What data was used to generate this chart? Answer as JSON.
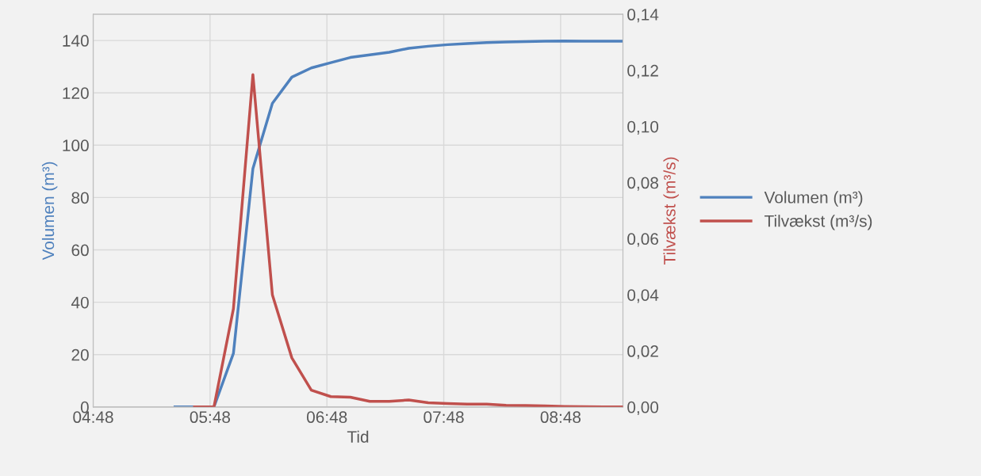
{
  "chart_data": {
    "type": "line",
    "xlabel": "Tid",
    "ylabel": "Volumen (m³)",
    "y2label": "Tilvækst (m³/s)",
    "xlim": [
      4.8,
      9.3333
    ],
    "xticks": [
      {
        "value": 4.8,
        "label": "04:48"
      },
      {
        "value": 5.8,
        "label": "05:48"
      },
      {
        "value": 6.8,
        "label": "06:48"
      },
      {
        "value": 7.8,
        "label": "07:48"
      },
      {
        "value": 8.8,
        "label": "08:48"
      }
    ],
    "ylim": [
      0,
      150
    ],
    "yticks": [
      0,
      20,
      40,
      60,
      80,
      100,
      120,
      140
    ],
    "y2lim": [
      0,
      0.14
    ],
    "y2ticks": [
      {
        "value": 0,
        "label": "0,00"
      },
      {
        "value": 0.02,
        "label": "0,02"
      },
      {
        "value": 0.04,
        "label": "0,04"
      },
      {
        "value": 0.06,
        "label": "0,06"
      },
      {
        "value": 0.08,
        "label": "0,08"
      },
      {
        "value": 0.1,
        "label": "0,10"
      },
      {
        "value": 0.12,
        "label": "0,12"
      },
      {
        "value": 0.14,
        "label": "0,14"
      }
    ],
    "grid": true,
    "legend": "right",
    "marker": "none",
    "line_style": "solid",
    "series": [
      {
        "name": "Volumen (m³)",
        "color": "#4f81bd",
        "x": [
          5.5,
          5.6667,
          5.8333,
          6.0,
          6.1667,
          6.3333,
          6.5,
          6.6667,
          6.8333,
          7.0,
          7.1667,
          7.3333,
          7.5,
          7.6667,
          7.8333,
          8.0,
          8.1667,
          8.3333,
          8.5,
          8.6667,
          8.8333,
          9.0,
          9.1667,
          9.3333
        ],
        "values": [
          0,
          0,
          0,
          20.5,
          91,
          116,
          126,
          129.5,
          131.5,
          133.5,
          134.5,
          135.5,
          137,
          137.8,
          138.4,
          138.8,
          139.2,
          139.4,
          139.6,
          139.7,
          139.8,
          139.7,
          139.7,
          139.7
        ]
      },
      {
        "name": "Tilvækst (m³/s)",
        "color": "#c0504d",
        "axis": "y2",
        "x": [
          5.6667,
          5.8333,
          6.0,
          6.1667,
          6.3333,
          6.5,
          6.6667,
          6.8333,
          7.0,
          7.1667,
          7.3333,
          7.5,
          7.6667,
          7.8333,
          8.0,
          8.1667,
          8.3333,
          8.5,
          8.6667,
          8.8333,
          9.0,
          9.1667,
          9.3333
        ],
        "values": [
          0,
          0,
          0.035,
          0.1185,
          0.04,
          0.0175,
          0.006,
          0.0037,
          0.0035,
          0.002,
          0.002,
          0.0025,
          0.0015,
          0.0012,
          0.001,
          0.001,
          0.0006,
          0.0005,
          0.0004,
          0.0002,
          0.0001,
          0,
          0
        ]
      }
    ]
  }
}
